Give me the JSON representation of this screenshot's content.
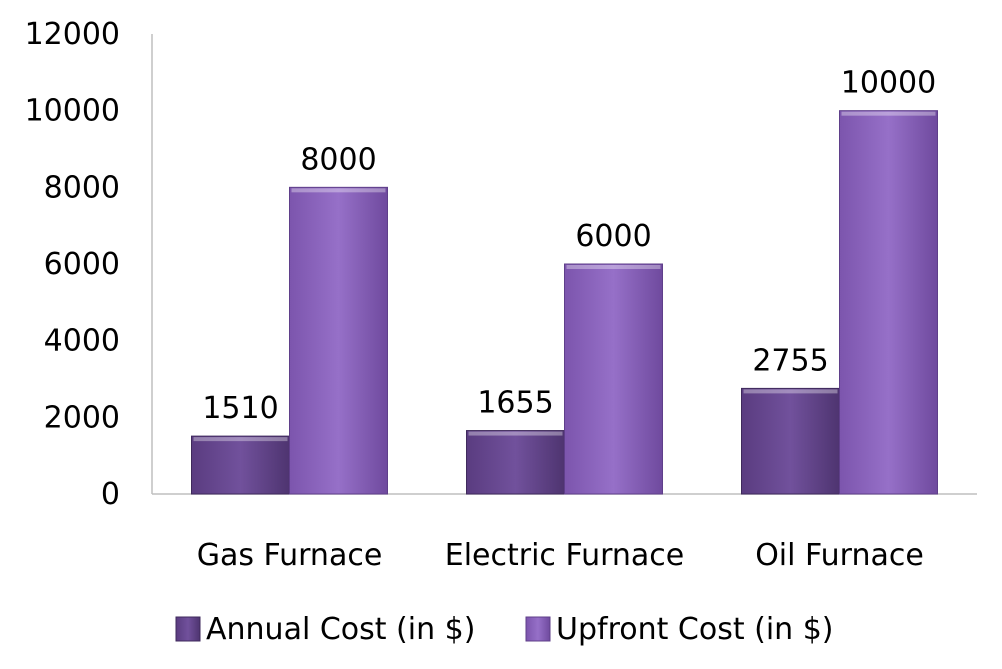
{
  "chart_data": {
    "type": "bar",
    "categories": [
      "Gas Furnace",
      "Electric Furnace",
      "Oil Furnace"
    ],
    "series": [
      {
        "name": "Annual Cost (in $)",
        "values": [
          1510,
          1655,
          2755
        ],
        "color": "#6a4a93"
      },
      {
        "name": "Upfront Cost (in $)",
        "values": [
          8000,
          6000,
          10000
        ],
        "color": "#8c63bf"
      }
    ],
    "title": "",
    "xlabel": "",
    "ylabel": "",
    "ylim": [
      0,
      12000
    ],
    "yticks": [
      "0",
      "2000",
      "4000",
      "6000",
      "8000",
      "10000",
      "12000"
    ],
    "grid": false,
    "legend_position": "bottom",
    "data_labels": true,
    "style": "3d-bevel"
  }
}
